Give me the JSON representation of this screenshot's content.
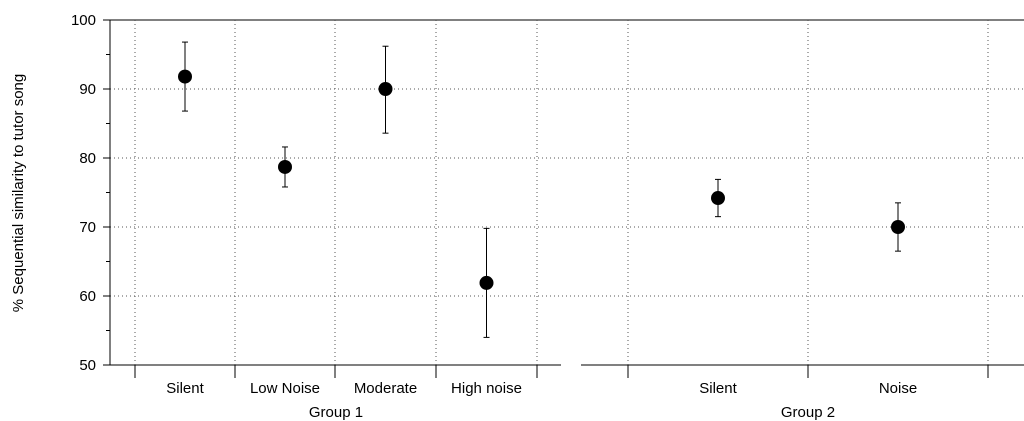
{
  "chart_data": {
    "type": "scatter",
    "ylabel": "% Sequential similarity to tutor song",
    "ylim": [
      50,
      100
    ],
    "yticks": [
      50,
      60,
      70,
      80,
      90,
      100
    ],
    "grid": true,
    "panels": [
      {
        "xlabel": "Group 1",
        "categories": [
          "Silent",
          "Low Noise",
          "Moderate",
          "High noise"
        ],
        "values": [
          91.8,
          78.7,
          90.0,
          61.9
        ],
        "err_low": [
          86.8,
          75.8,
          83.6,
          54.0
        ],
        "err_high": [
          96.8,
          81.6,
          96.2,
          69.8
        ]
      },
      {
        "xlabel": "Group 2",
        "categories": [
          "Silent",
          "Noise"
        ],
        "values": [
          74.2,
          70.0
        ],
        "err_low": [
          71.5,
          66.5
        ],
        "err_high": [
          76.9,
          73.5
        ]
      }
    ]
  }
}
